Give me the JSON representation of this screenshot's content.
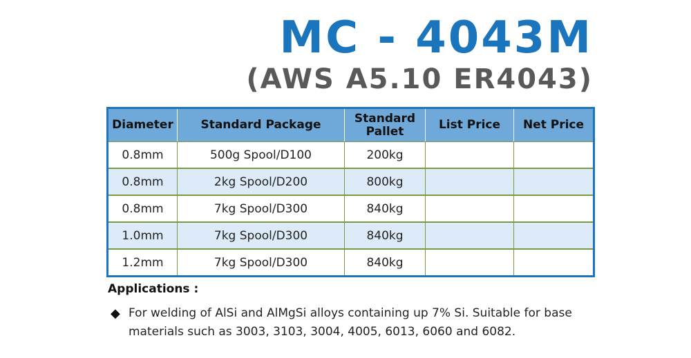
{
  "header": {
    "title": "MC - 4043M",
    "subtitle": "(AWS A5.10 ER4043)"
  },
  "table": {
    "columns": [
      "Diameter",
      "Standard Package",
      "Standard Pallet",
      "List Price",
      "Net Price"
    ],
    "rows": [
      [
        "0.8mm",
        "500g Spool/D100",
        "200kg",
        "",
        ""
      ],
      [
        "0.8mm",
        "2kg Spool/D200",
        "800kg",
        "",
        ""
      ],
      [
        "0.8mm",
        "7kg Spool/D300",
        "840kg",
        "",
        ""
      ],
      [
        "1.0mm",
        "7kg Spool/D300",
        "840kg",
        "",
        ""
      ],
      [
        "1.2mm",
        "7kg Spool/D300",
        "840kg",
        "",
        ""
      ]
    ]
  },
  "applications": {
    "heading": "Applications :",
    "bullet_icon": "diamond-icon",
    "items": [
      "For welding of AlSi and AlMgSi alloys  containing up 7% Si. Suitable for base materials such as 3003, 3103, 3004, 4005, 6013, 6060 and 6082."
    ]
  },
  "colors": {
    "brand_blue": "#1b75bc",
    "header_fill": "#6fa9d9",
    "stripe_fill": "#dcebf7",
    "grid_line": "#7a9a3f"
  }
}
